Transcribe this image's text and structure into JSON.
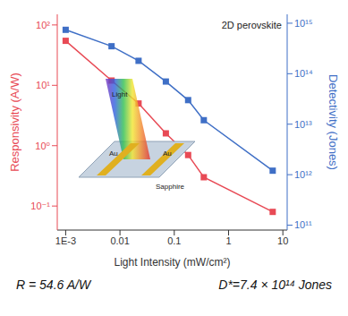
{
  "chart_data": {
    "type": "line",
    "title": "2D perovskite",
    "x_label": "Light Intensity (mW/cm²)",
    "y_label": "Responsivity (A/W)",
    "y2_label": "Detectivity (Jones)",
    "log": true,
    "grid": false,
    "x": [
      0.001,
      0.007,
      0.022,
      0.07,
      0.18,
      0.35,
      6.5
    ],
    "xlim": [
      0.0007,
      12
    ],
    "xticks": [
      {
        "value": 0.001,
        "label": "1E-3"
      },
      0.01,
      0.1,
      1,
      10
    ],
    "ylim": [
      0.04,
      150
    ],
    "yticks": [
      {
        "value": 0.1,
        "label": "10⁻¹"
      },
      {
        "value": 1,
        "label": "10⁰"
      },
      {
        "value": 10,
        "label": "10¹"
      },
      {
        "value": 100,
        "label": "10²"
      }
    ],
    "y2lim": [
      80000000000,
      1500000000000000
    ],
    "y2ticks": [
      {
        "value": 100000000000,
        "label": "10¹¹"
      },
      {
        "value": 1000000000000,
        "label": "10¹²"
      },
      {
        "value": 10000000000000,
        "label": "10¹³"
      },
      {
        "value": 100000000000000,
        "label": "10¹⁴"
      },
      {
        "value": 1000000000000000,
        "label": "10¹⁵"
      }
    ],
    "series": [
      {
        "color": "#e84a55",
        "marker": "square",
        "line_style": "solid",
        "values": [
          54.6,
          12,
          5,
          1.6,
          0.7,
          0.3,
          0.08
        ]
      },
      {
        "color": "#3f6fc6",
        "marker": "square",
        "line_style": "solid",
        "axis": "y2",
        "values": [
          740000000000000,
          350000000000000,
          180000000000000,
          70000000000000,
          30000000000000,
          12000000000000,
          1200000000000
        ]
      }
    ],
    "annotations": [
      "R = 54.6 A/W",
      "D*=7.4 × 10¹⁴ Jones",
      "Light",
      "Au",
      "Au",
      "Sapphire"
    ]
  }
}
